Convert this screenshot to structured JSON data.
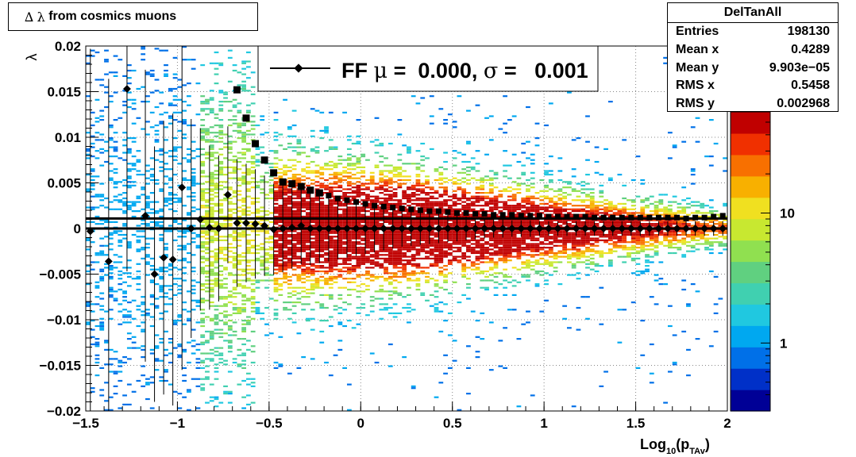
{
  "title": {
    "prefix": "∆",
    "symbol": "λ",
    "text": "from cosmics muons"
  },
  "stats": {
    "name": "DelTanAll",
    "rows": [
      {
        "label": "Entries",
        "value": "198130"
      },
      {
        "label": "Mean x",
        "value": "0.4289"
      },
      {
        "label": "Mean y",
        "value": "9.903e−05"
      },
      {
        "label": "RMS x",
        "value": "0.5458"
      },
      {
        "label": "RMS y",
        "value": "0.002968"
      }
    ]
  },
  "legend": {
    "prefix": "FF",
    "mu_symbol": "μ",
    "mu_text": " =  0.000, ",
    "sigma_symbol": "σ",
    "sigma_text": " =   0.001"
  },
  "colorbar": {
    "labels": [
      {
        "value": 10,
        "text": "10"
      },
      {
        "value": 1,
        "text": "1"
      }
    ],
    "colors": [
      "#000096",
      "#0030c8",
      "#0070e8",
      "#00a8f0",
      "#20c8e0",
      "#40d0b0",
      "#60d080",
      "#90e050",
      "#c8e830",
      "#f0e020",
      "#f8b000",
      "#f87000",
      "#f03000",
      "#c00000"
    ]
  },
  "chart_data": {
    "type": "heatmap",
    "title": "∆ λ from cosmics muons",
    "xlabel": "Log",
    "xlabel_sub": "10",
    "xlabel_arg": "(p",
    "xlabel_arg_sub": "TAv",
    "xlabel_close": ")",
    "ylabel": "λ",
    "xlim": [
      -1.5,
      2
    ],
    "ylim": [
      -0.02,
      0.02
    ],
    "x_ticks": [
      {
        "v": -1.5,
        "t": "−1.5"
      },
      {
        "v": -1,
        "t": "−1"
      },
      {
        "v": -0.5,
        "t": "−0.5"
      },
      {
        "v": 0,
        "t": "0"
      },
      {
        "v": 0.5,
        "t": "0.5"
      },
      {
        "v": 1,
        "t": "1"
      },
      {
        "v": 1.5,
        "t": "1.5"
      },
      {
        "v": 2,
        "t": "2"
      }
    ],
    "y_ticks": [
      {
        "v": 0.02,
        "t": "0.02"
      },
      {
        "v": 0.015,
        "t": "0.015"
      },
      {
        "v": 0.01,
        "t": "0.01"
      },
      {
        "v": 0.005,
        "t": "0.005"
      },
      {
        "v": 0,
        "t": "0"
      },
      {
        "v": -0.005,
        "t": "−0.005"
      },
      {
        "v": -0.01,
        "t": "−0.01"
      },
      {
        "v": -0.015,
        "t": "−0.015"
      },
      {
        "v": -0.02,
        "t": "−0.02"
      }
    ],
    "grid": true,
    "colz_scale": "log",
    "fit_lines": [
      {
        "name": "mean",
        "y": 0.0
      },
      {
        "name": "sigma",
        "y": 0.0011
      }
    ],
    "mean_points": {
      "x": [
        -1.475,
        -1.375,
        -1.275,
        -1.175,
        -1.125,
        -1.075,
        -1.025,
        -0.975,
        -0.925,
        -0.875,
        -0.825,
        -0.775,
        -0.725,
        -0.675,
        -0.625,
        -0.575,
        -0.525,
        -0.475,
        -0.425,
        -0.375,
        -0.325,
        -0.275,
        -0.225,
        -0.175,
        -0.125,
        -0.075,
        -0.025,
        0.025,
        0.075,
        0.125,
        0.175,
        0.225,
        0.275,
        0.325,
        0.375,
        0.425,
        0.475,
        0.525,
        0.575,
        0.625,
        0.675,
        0.725,
        0.775,
        0.825,
        0.875,
        0.925,
        0.975,
        1.025,
        1.075,
        1.125,
        1.175,
        1.225,
        1.275,
        1.325,
        1.375,
        1.425,
        1.475,
        1.525,
        1.575,
        1.625,
        1.675,
        1.725,
        1.775,
        1.825,
        1.875,
        1.925,
        1.975
      ],
      "y": [
        -0.0003,
        -0.0036,
        0.0153,
        0.0014,
        -0.005,
        -0.0032,
        -0.0034,
        0.0045,
        0.0,
        0.001,
        0.0001,
        0.0,
        0.0037,
        0.0006,
        0.0006,
        0.0005,
        0.0003,
        -0.0001,
        0.0,
        0.0001,
        0.0003,
        0.0,
        0.0,
        0.0,
        0.0,
        0.0,
        0.0,
        0.0,
        0.0,
        0.0,
        0.0,
        0.0,
        0.0,
        0.0,
        0.0,
        0.0,
        0.0,
        0.0,
        0.0,
        0.0,
        0.0,
        0.0,
        0.0,
        0.0,
        0.0,
        0.0,
        0.0,
        0.0,
        0.0,
        0.0,
        0.0,
        0.0,
        0.0,
        0.0,
        0.0,
        0.0,
        0.0,
        0.0,
        0.0,
        0.0,
        0.0,
        0.0,
        0.0,
        0.0,
        0.0,
        0.0,
        0.0
      ],
      "yerr": [
        0.02,
        0.02,
        0.02,
        0.016,
        0.014,
        0.015,
        0.016,
        0.02,
        0.012,
        0.01,
        0.009,
        0.008,
        0.0075,
        0.007,
        0.0065,
        0.006,
        0.0055,
        0.005,
        0.0048,
        0.0045,
        0.0042,
        0.004,
        0.0038,
        0.0036,
        0.0034,
        0.0032,
        0.003,
        0.0028,
        0.0026,
        0.0024,
        0.0022,
        0.002,
        0.0019,
        0.0018,
        0.0017,
        0.0016,
        0.0015,
        0.0014,
        0.0013,
        0.0012,
        0.0011,
        0.001,
        0.001,
        0.0009,
        0.0009,
        0.0009,
        0.0008,
        0.0008,
        0.0008,
        0.0008,
        0.0008,
        0.0008,
        0.0008,
        0.0008,
        0.0008,
        0.0008,
        0.0008,
        0.0008,
        0.0008,
        0.0008,
        0.0008,
        0.0008,
        0.0008,
        0.0008,
        0.0008,
        0.0008,
        0.0008
      ]
    },
    "sigma_points": {
      "x": [
        -0.675,
        -0.625,
        -0.575,
        -0.525,
        -0.475,
        -0.425,
        -0.375,
        -0.325,
        -0.275,
        -0.225,
        -0.175,
        -0.125,
        -0.075,
        -0.025,
        0.025,
        0.075,
        0.125,
        0.175,
        0.225,
        0.275,
        0.325,
        0.375,
        0.425,
        0.475,
        0.525,
        0.575,
        0.625,
        0.675,
        0.725,
        0.775,
        0.825,
        0.875,
        0.925,
        0.975,
        1.025,
        1.075,
        1.125,
        1.175,
        1.225,
        1.275,
        1.325,
        1.375,
        1.425,
        1.475,
        1.525,
        1.575,
        1.625,
        1.675,
        1.725,
        1.775,
        1.825,
        1.875,
        1.925,
        1.975
      ],
      "y": [
        0.0152,
        0.0121,
        0.0093,
        0.0075,
        0.0061,
        0.0051,
        0.0049,
        0.0046,
        0.0042,
        0.0039,
        0.0036,
        0.0033,
        0.0031,
        0.0029,
        0.0027,
        0.0025,
        0.0024,
        0.0023,
        0.0022,
        0.0021,
        0.002,
        0.0019,
        0.0019,
        0.0018,
        0.0017,
        0.0017,
        0.0016,
        0.0016,
        0.0015,
        0.0015,
        0.0015,
        0.0014,
        0.0014,
        0.0014,
        0.0013,
        0.0013,
        0.0013,
        0.0013,
        0.0013,
        0.0012,
        0.0012,
        0.0012,
        0.0012,
        0.0012,
        0.0012,
        0.0012,
        0.0012,
        0.0012,
        0.0012,
        0.0011,
        0.0012,
        0.0012,
        0.0013,
        0.0014
      ]
    }
  }
}
